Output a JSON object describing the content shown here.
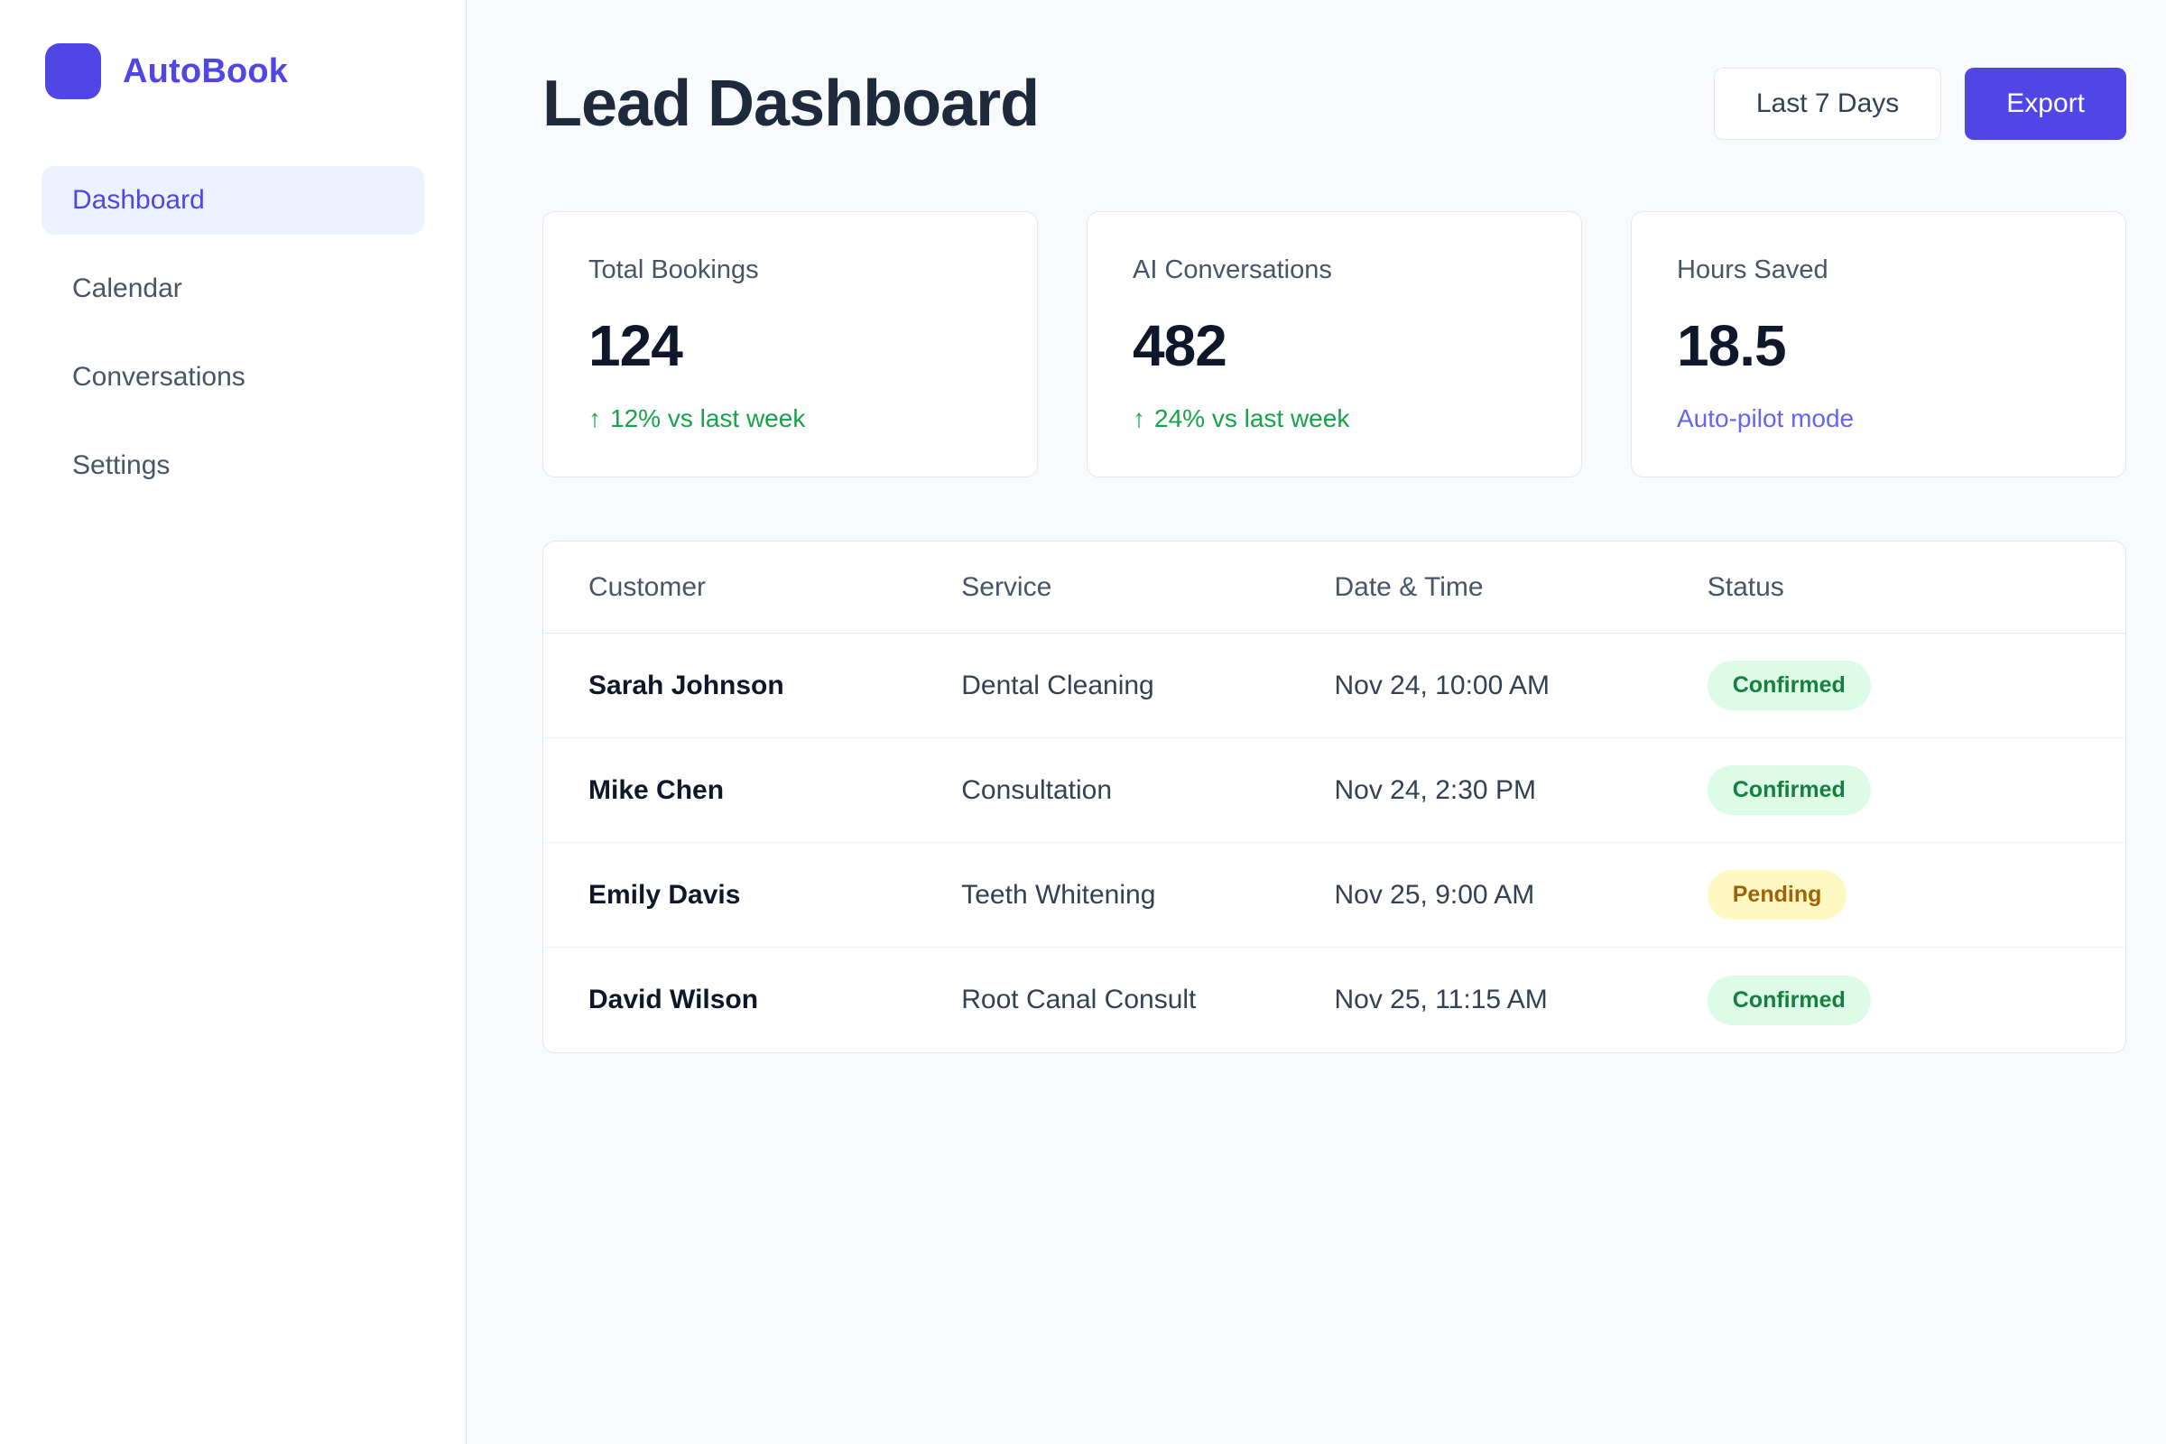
{
  "app": {
    "name": "AutoBook"
  },
  "sidebar": {
    "items": [
      {
        "label": "Dashboard",
        "active": true
      },
      {
        "label": "Calendar",
        "active": false
      },
      {
        "label": "Conversations",
        "active": false
      },
      {
        "label": "Settings",
        "active": false
      }
    ]
  },
  "header": {
    "title": "Lead Dashboard",
    "date_range_label": "Last 7 Days",
    "export_label": "Export"
  },
  "stats": [
    {
      "label": "Total Bookings",
      "value": "124",
      "trend_icon": "↑",
      "delta": "12% vs last week"
    },
    {
      "label": "AI Conversations",
      "value": "482",
      "trend_icon": "↑",
      "delta": "24% vs last week"
    },
    {
      "label": "Hours Saved",
      "value": "18.5",
      "trend_icon": "",
      "delta": "Auto-pilot mode"
    }
  ],
  "table": {
    "columns": [
      "Customer",
      "Service",
      "Date & Time",
      "Status"
    ],
    "rows": [
      {
        "customer": "Sarah Johnson",
        "service": "Dental Cleaning",
        "datetime": "Nov 24, 10:00 AM",
        "status": "Confirmed"
      },
      {
        "customer": "Mike Chen",
        "service": "Consultation",
        "datetime": "Nov 24, 2:30 PM",
        "status": "Confirmed"
      },
      {
        "customer": "Emily Davis",
        "service": "Teeth Whitening",
        "datetime": "Nov 25, 9:00 AM",
        "status": "Pending"
      },
      {
        "customer": "David Wilson",
        "service": "Root Canal Consult",
        "datetime": "Nov 25, 11:15 AM",
        "status": "Confirmed"
      }
    ]
  },
  "colors": {
    "accent": "#4F46E5",
    "active_nav_bg": "#EEF2FF",
    "positive_delta": "#16A34A",
    "autopilot_link": "#6366F1",
    "confirmed_bg": "#DCFCE7",
    "confirmed_text": "#15803D",
    "pending_bg": "#FEF9C3",
    "pending_text": "#A16207"
  }
}
